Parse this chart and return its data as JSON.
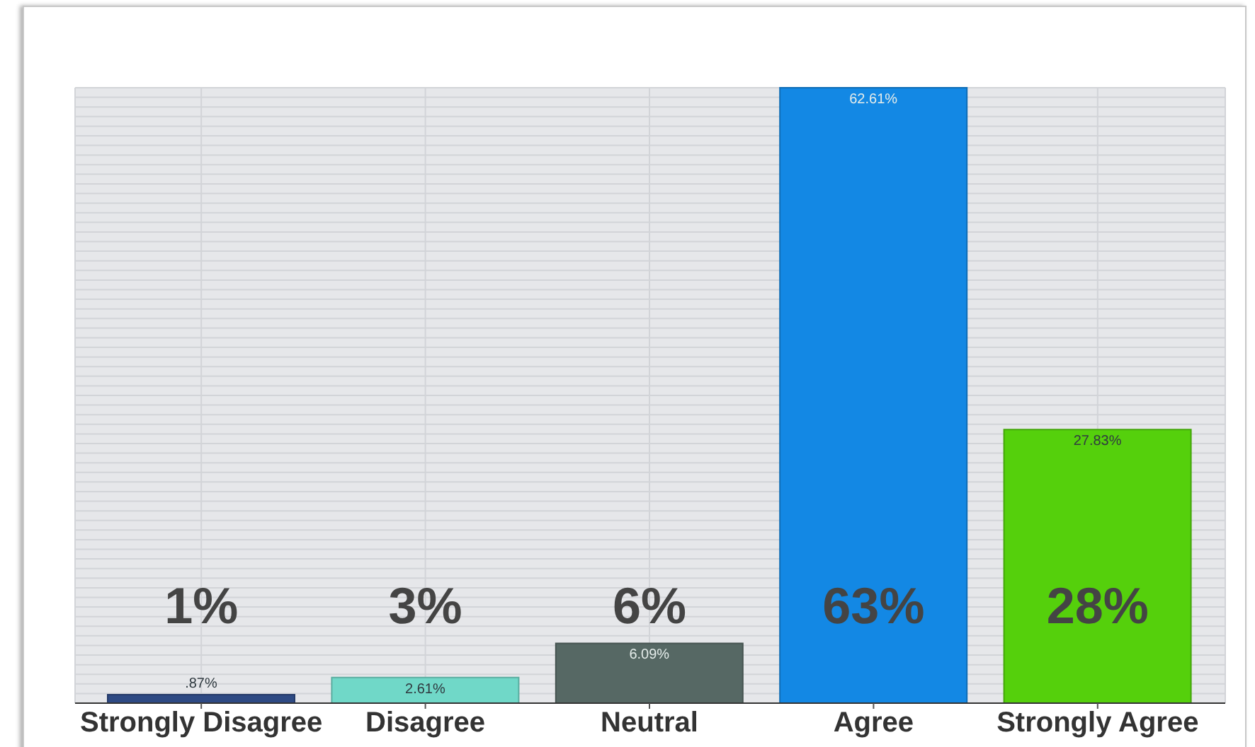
{
  "chart_data": {
    "type": "bar",
    "categories": [
      "Strongly Disagree",
      "Disagree",
      "Neutral",
      "Agree",
      "Strongly Agree"
    ],
    "values": [
      0.87,
      2.61,
      6.09,
      62.61,
      27.83
    ],
    "colors": [
      "#2e4a84",
      "#70d8c8",
      "#566864",
      "#1388e4",
      "#55d00c"
    ],
    "value_labels": [
      ".87%",
      "2.61%",
      "6.09%",
      "62.61%",
      "27.83%"
    ],
    "annotations": [
      "1%",
      "3%",
      "6%",
      "63%",
      "28%"
    ],
    "grid": true
  }
}
